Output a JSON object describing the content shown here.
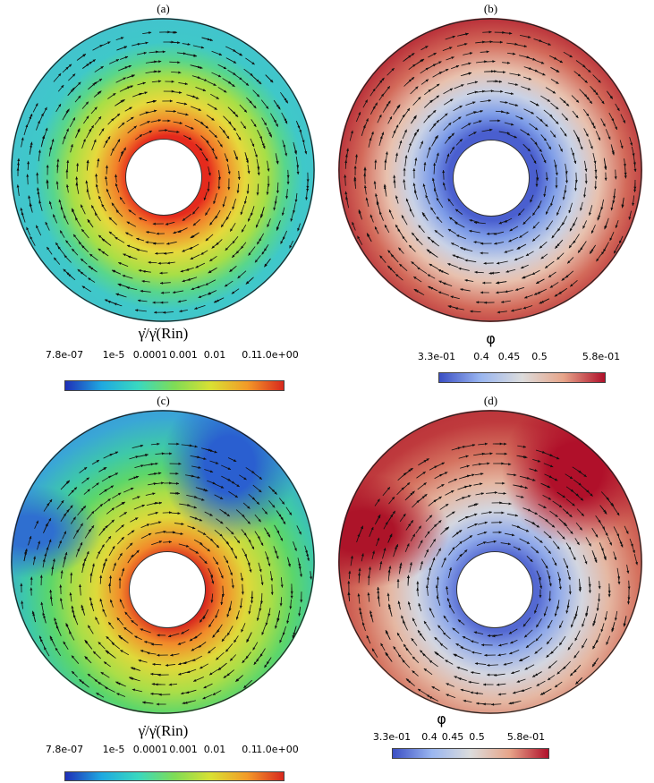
{
  "panels": [
    {
      "label": "(a)",
      "quantity": "shear-rate",
      "colorbar": {
        "title": "γ̇/γ̇(Rin)",
        "ticks": [
          "7.8e-07",
          "1e-5",
          "0.0001",
          "0.001",
          "0.01",
          "0.1",
          "1.0e+00"
        ]
      }
    },
    {
      "label": "(b)",
      "quantity": "volume-fraction",
      "colorbar": {
        "title": "φ",
        "ticks": [
          "3.3e-01",
          "0.4",
          "0.45",
          "0.5",
          "5.8e-01"
        ]
      }
    },
    {
      "label": "(c)",
      "quantity": "shear-rate",
      "colorbar": {
        "title": "γ̇/γ̇(Rin)",
        "ticks": [
          "7.8e-07",
          "1e-5",
          "0.0001",
          "0.001",
          "0.01",
          "0.1",
          "1.0e+00"
        ]
      }
    },
    {
      "label": "(d)",
      "quantity": "volume-fraction",
      "colorbar": {
        "title": "φ",
        "ticks": [
          "3.3e-01",
          "0.4",
          "0.45",
          "0.5",
          "5.8e-01"
        ]
      }
    }
  ],
  "colors": {
    "jet": [
      "#1f2fb8",
      "#1fa9e0",
      "#39d8c0",
      "#7fdc56",
      "#d9e033",
      "#f39a28",
      "#d8281e"
    ],
    "coolwarm": [
      "#3b4fc4",
      "#9ab6f0",
      "#dcdcdc",
      "#e7a58a",
      "#b0102a"
    ]
  }
}
